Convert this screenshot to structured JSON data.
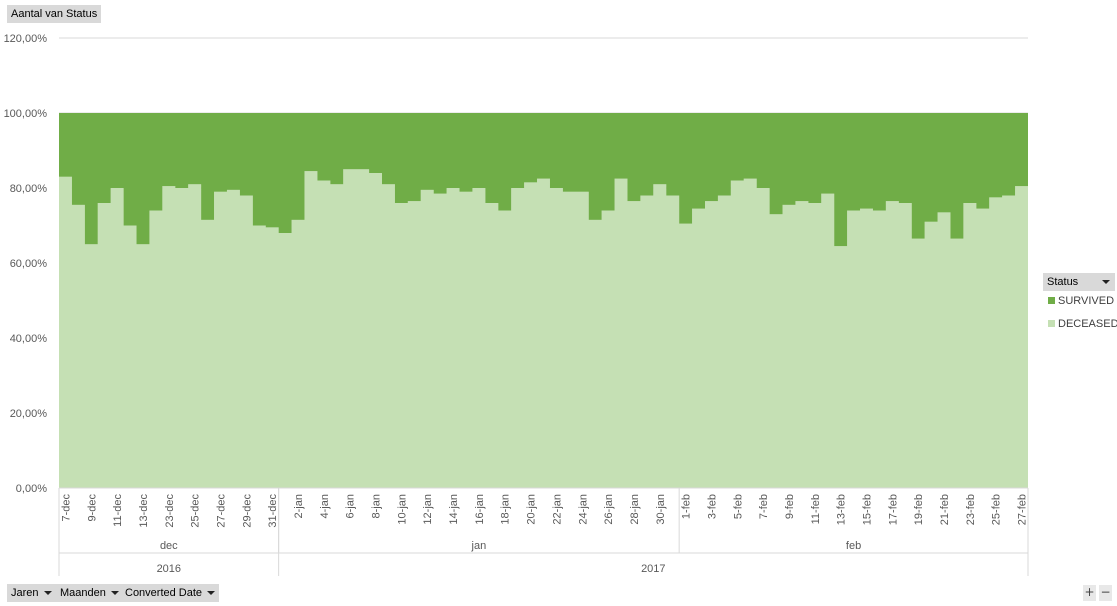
{
  "value_field_label": "Aantal van Status",
  "legend": {
    "title": "Status",
    "items": [
      {
        "label": "SURVIVED",
        "color": "#70ad47"
      },
      {
        "label": "DECEASED",
        "color": "#c5e0b4"
      }
    ]
  },
  "axis_fields": [
    {
      "label": "Jaren"
    },
    {
      "label": "Maanden"
    },
    {
      "label": "Converted Date"
    }
  ],
  "zoom": {
    "in_label": "+",
    "out_label": "−"
  },
  "chart_data": {
    "type": "area",
    "stacking": "percent",
    "ylim": [
      0,
      1.2
    ],
    "ytick_labels": [
      "0,00%",
      "20,00%",
      "40,00%",
      "60,00%",
      "80,00%",
      "100,00%",
      "120,00%"
    ],
    "gridlines": true,
    "legend_position": "right",
    "x_tick_labels_shown": [
      "7-dec",
      "9-dec",
      "11-dec",
      "13-dec",
      "23-dec",
      "25-dec",
      "27-dec",
      "29-dec",
      "31-dec",
      "2-jan",
      "4-jan",
      "6-jan",
      "8-jan",
      "10-jan",
      "12-jan",
      "14-jan",
      "16-jan",
      "18-jan",
      "20-jan",
      "22-jan",
      "24-jan",
      "26-jan",
      "28-jan",
      "30-jan",
      "1-feb",
      "3-feb",
      "5-feb",
      "7-feb",
      "9-feb",
      "11-feb",
      "13-feb",
      "15-feb",
      "17-feb",
      "19-feb",
      "21-feb",
      "23-feb",
      "25-feb",
      "27-feb"
    ],
    "month_groups": [
      {
        "label": "dec",
        "count": 17
      },
      {
        "label": "jan",
        "count": 31
      },
      {
        "label": "feb",
        "count": 27
      }
    ],
    "year_groups": [
      {
        "label": "2016",
        "count": 17
      },
      {
        "label": "2017",
        "count": 58
      }
    ],
    "series": [
      {
        "name": "DECEASED",
        "values": [
          0.83,
          0.755,
          0.65,
          0.76,
          0.8,
          0.7,
          0.65,
          0.74,
          0.805,
          0.8,
          0.81,
          0.715,
          0.79,
          0.795,
          0.78,
          0.7,
          0.695,
          0.68,
          0.715,
          0.845,
          0.82,
          0.81,
          0.85,
          0.85,
          0.84,
          0.81,
          0.76,
          0.765,
          0.795,
          0.785,
          0.8,
          0.79,
          0.8,
          0.76,
          0.74,
          0.8,
          0.815,
          0.825,
          0.8,
          0.79,
          0.79,
          0.715,
          0.74,
          0.825,
          0.765,
          0.78,
          0.81,
          0.78,
          0.705,
          0.745,
          0.765,
          0.78,
          0.82,
          0.825,
          0.8,
          0.73,
          0.755,
          0.765,
          0.76,
          0.785,
          0.645,
          0.74,
          0.745,
          0.74,
          0.765,
          0.76,
          0.665,
          0.71,
          0.735,
          0.665,
          0.76,
          0.745,
          0.775,
          0.78,
          0.805
        ]
      },
      {
        "name": "SURVIVED",
        "values": [
          0.17,
          0.245,
          0.35,
          0.24,
          0.2,
          0.3,
          0.35,
          0.26,
          0.195,
          0.2,
          0.19,
          0.285,
          0.21,
          0.205,
          0.22,
          0.3,
          0.305,
          0.32,
          0.285,
          0.155,
          0.18,
          0.19,
          0.15,
          0.15,
          0.16,
          0.19,
          0.24,
          0.235,
          0.205,
          0.215,
          0.2,
          0.21,
          0.2,
          0.24,
          0.26,
          0.2,
          0.185,
          0.175,
          0.2,
          0.21,
          0.21,
          0.285,
          0.26,
          0.175,
          0.235,
          0.22,
          0.19,
          0.22,
          0.295,
          0.255,
          0.235,
          0.22,
          0.18,
          0.175,
          0.2,
          0.27,
          0.245,
          0.235,
          0.24,
          0.215,
          0.355,
          0.26,
          0.255,
          0.26,
          0.235,
          0.24,
          0.335,
          0.29,
          0.265,
          0.335,
          0.24,
          0.255,
          0.225,
          0.22,
          0.195
        ]
      }
    ]
  }
}
